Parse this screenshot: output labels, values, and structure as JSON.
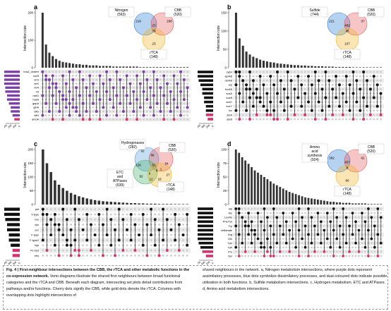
{
  "colors": {
    "purple": "#7b3fa6",
    "blue": "#3f8fb5",
    "pink": "#d6336c",
    "gold": "#f0a81c",
    "black": "#111111",
    "grey": "#cfcfcf",
    "stripe": "#ededed"
  },
  "axis": {
    "set_size": "Set size",
    "intersection_size": "Intersection size"
  },
  "panels": [
    {
      "id": "a",
      "label": "a",
      "venn": {
        "circles": [
          {
            "label": "Nitrogen",
            "count": "(563)",
            "color": "#2f7fd6"
          },
          {
            "label": "CBB",
            "count": "(520)",
            "color": "#e65a5a"
          },
          {
            "label": "rTCA",
            "count": "(148)",
            "color": "#f0b429"
          }
        ],
        "regions": [
          "218",
          "23",
          "298",
          "79",
          "23"
        ]
      },
      "yticks": [
        "0",
        "100",
        "200"
      ],
      "setsize_ticks": [
        "300",
        "200",
        "100",
        "0"
      ],
      "sets": [
        "nosZ_cluster",
        "norB",
        "nirS",
        "nirK",
        "nirA",
        "nrt",
        "narG",
        "nasA",
        "gapA",
        "glnA",
        "nifD",
        "nifH",
        "amoA"
      ],
      "bars": [
        95,
        40,
        26,
        20,
        15,
        12,
        10,
        9,
        8,
        7,
        6,
        6,
        5,
        5,
        4,
        4,
        4,
        3,
        3,
        3,
        3,
        2,
        2,
        2,
        2,
        2,
        2,
        2,
        2,
        1,
        1,
        1,
        1,
        1,
        1,
        1,
        1,
        1,
        1,
        1,
        1,
        1,
        1,
        1
      ],
      "setbars": [
        14,
        10,
        9,
        9,
        8,
        8,
        7,
        7,
        6,
        5,
        5,
        4,
        3
      ],
      "setcolors": [
        "#7b3fa6",
        "#7b3fa6",
        "#7b3fa6",
        "#7b3fa6",
        "#7b3fa6",
        "#7b3fa6",
        "#7b3fa6",
        "#7b3fa6",
        "#7b3fa6",
        "#7b3fa6",
        "#7b3fa6",
        "#7b3fa6",
        "#d6336c"
      ]
    },
    {
      "id": "b",
      "label": "b",
      "venn": {
        "circles": [
          {
            "label": "Sulfide",
            "count": "(744)",
            "color": "#2f7fd6"
          },
          {
            "label": "CBB",
            "count": "(520)",
            "color": "#e65a5a"
          },
          {
            "label": "rTCA",
            "count": "(148)",
            "color": "#f0b429"
          }
        ],
        "regions": [
          "221",
          "482",
          "37",
          "45",
          "107"
        ]
      },
      "yticks": [
        "0",
        "50",
        "100",
        "150"
      ],
      "setsize_ticks": [
        "600",
        "400",
        "200",
        "0"
      ],
      "sets": [
        "cysH",
        "aprAB",
        "dsrAB",
        "sqr",
        "fccAB",
        "soxA",
        "soxB",
        "soxC",
        "soxY",
        "fcc",
        "dsrA",
        "dsrB"
      ],
      "bars": [
        150,
        80,
        60,
        44,
        36,
        30,
        26,
        22,
        19,
        17,
        15,
        14,
        12,
        11,
        10,
        9,
        8,
        7,
        7,
        6,
        6,
        5,
        5,
        4,
        4,
        4,
        3,
        3,
        3,
        2,
        2,
        2,
        2,
        2,
        1,
        1,
        1,
        1,
        1,
        1,
        1,
        1,
        1
      ],
      "setbars": [
        14,
        10,
        8,
        7,
        6,
        6,
        5,
        5,
        4,
        4,
        4,
        3
      ],
      "setcolors": [
        "#111111",
        "#111111",
        "#111111",
        "#111111",
        "#111111",
        "#111111",
        "#111111",
        "#111111",
        "#111111",
        "#111111",
        "#d6336c",
        "#d6336c"
      ]
    },
    {
      "id": "c",
      "label": "c",
      "venn": {
        "circles": [
          {
            "label": "Hydrogenases",
            "count": "(282)",
            "color": "#5aa0e0"
          },
          {
            "label": "CBB",
            "count": "(520)",
            "color": "#e65a5a"
          },
          {
            "label": "ETC and ATPases",
            "count": "(639)",
            "color": "#49b36a"
          },
          {
            "label": "rTCA",
            "count": "(148)",
            "color": "#f0b429"
          }
        ],
        "regions": [
          "92",
          "86",
          "222",
          "126",
          "61",
          "54",
          "92",
          "6",
          "0",
          "1",
          "12",
          "18",
          "27"
        ]
      },
      "yticks": [
        "0",
        "50",
        "100",
        "150",
        "200"
      ],
      "setsize_ticks": [
        "600",
        "400",
        "200",
        "0"
      ],
      "sets": [
        "pet",
        "V-type",
        "nuo",
        "cyo",
        "cox",
        "F-type",
        "F-type2",
        "hyp",
        "Fe-hyd",
        "ehs"
      ],
      "bars": [
        200,
        150,
        118,
        88,
        72,
        60,
        50,
        42,
        36,
        30,
        26,
        22,
        19,
        16,
        14,
        12,
        11,
        10,
        9,
        8,
        7,
        6,
        5,
        5,
        4,
        4,
        3,
        3,
        3,
        2,
        2,
        2,
        2,
        1,
        1,
        1,
        1
      ],
      "setbars": [
        14,
        9,
        8,
        7,
        7,
        6,
        6,
        5,
        4,
        4
      ],
      "setcolors": [
        "#111111",
        "#111111",
        "#111111",
        "#111111",
        "#111111",
        "#111111",
        "#111111",
        "#111111",
        "#d6336c",
        "#d6336c"
      ]
    },
    {
      "id": "d",
      "label": "d",
      "venn": {
        "circles": [
          {
            "label": "Amino acid synthesis",
            "count": "(924)",
            "color": "#2f7fd6"
          },
          {
            "label": "CBB",
            "count": "(520)",
            "color": "#e65a5a"
          },
          {
            "label": "rTCA",
            "count": "(148)",
            "color": "#f0b429"
          }
        ],
        "regions": [
          "382",
          "457",
          "62",
          "6",
          "80"
        ]
      },
      "yticks": [
        "0",
        "25",
        "50",
        "75",
        "100"
      ],
      "setsize_ticks": [
        "750",
        "500",
        "250",
        "0"
      ],
      "sets": [
        "Val",
        "His",
        "Leu/Ile",
        "Phe/Tyr",
        "Trp",
        "shikimate",
        "Arg",
        "Gln",
        "Cys",
        "Lys",
        "Pro",
        "Ser"
      ],
      "bars": [
        100,
        94,
        86,
        80,
        74,
        68,
        62,
        58,
        54,
        50,
        46,
        42,
        38,
        35,
        32,
        29,
        26,
        23,
        21,
        19,
        17,
        15,
        13,
        12,
        11,
        10,
        9,
        8,
        7,
        6,
        5,
        5,
        4,
        4,
        3,
        3,
        3,
        2,
        2,
        2,
        2,
        2,
        1,
        1,
        1,
        1,
        1
      ],
      "setbars": [
        14,
        12,
        12,
        11,
        10,
        10,
        9,
        9,
        8,
        7,
        6,
        4
      ],
      "setcolors": [
        "#111111",
        "#111111",
        "#111111",
        "#111111",
        "#111111",
        "#111111",
        "#111111",
        "#111111",
        "#111111",
        "#111111",
        "#d6336c",
        "#d6336c"
      ]
    }
  ],
  "caption": {
    "title": "Fig. 4 | First-neighbour intersections between the CBB, the rTCA and other metabolic functions in the co-expression network.",
    "left_text": "Venn diagrams illustrate the shared first neighbours between broad functional categories and the rTCA and CBB. Beneath each diagram, intersecting set plots detail contributions from pathways and/or functions. Cherry dots signify the CBB, while gold dots denote the rTCA. Columns with overlapping dots highlight intersections of",
    "right_text": "shared neighbours in the network. a, Nitrogen metabolism intersections, where purple dots represent assimilatory processes, blue dots symbolize dissimilatory processes, and dual-coloured dots indicate possible utilization in both functions. b, Sulfide metabolism intersections. c, Hydrogen metabolism, ETC and ATPases. d, Amino acid metabolism intersections."
  }
}
